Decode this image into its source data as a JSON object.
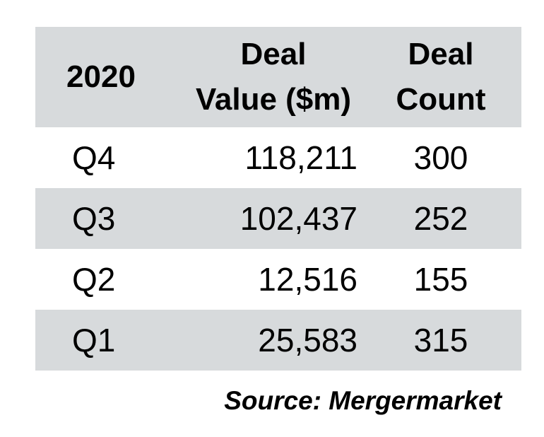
{
  "chart_data": {
    "type": "table",
    "columns": [
      "2020",
      "Deal Value ($m)",
      "Deal Count"
    ],
    "header": {
      "period": "2020",
      "value_line1": "Deal",
      "value_line2": "Value ($m)",
      "count_line1": "Deal",
      "count_line2": "Count"
    },
    "rows": [
      {
        "period": "Q4",
        "deal_value": "118,211",
        "deal_count": "300"
      },
      {
        "period": "Q3",
        "deal_value": "102,437",
        "deal_count": "252"
      },
      {
        "period": "Q2",
        "deal_value": "12,516",
        "deal_count": "155"
      },
      {
        "period": "Q1",
        "deal_value": "25,583",
        "deal_count": "315"
      }
    ],
    "source": "Source: Mergermarket"
  },
  "colors": {
    "shade": "#d7dadc",
    "text": "#000000"
  }
}
